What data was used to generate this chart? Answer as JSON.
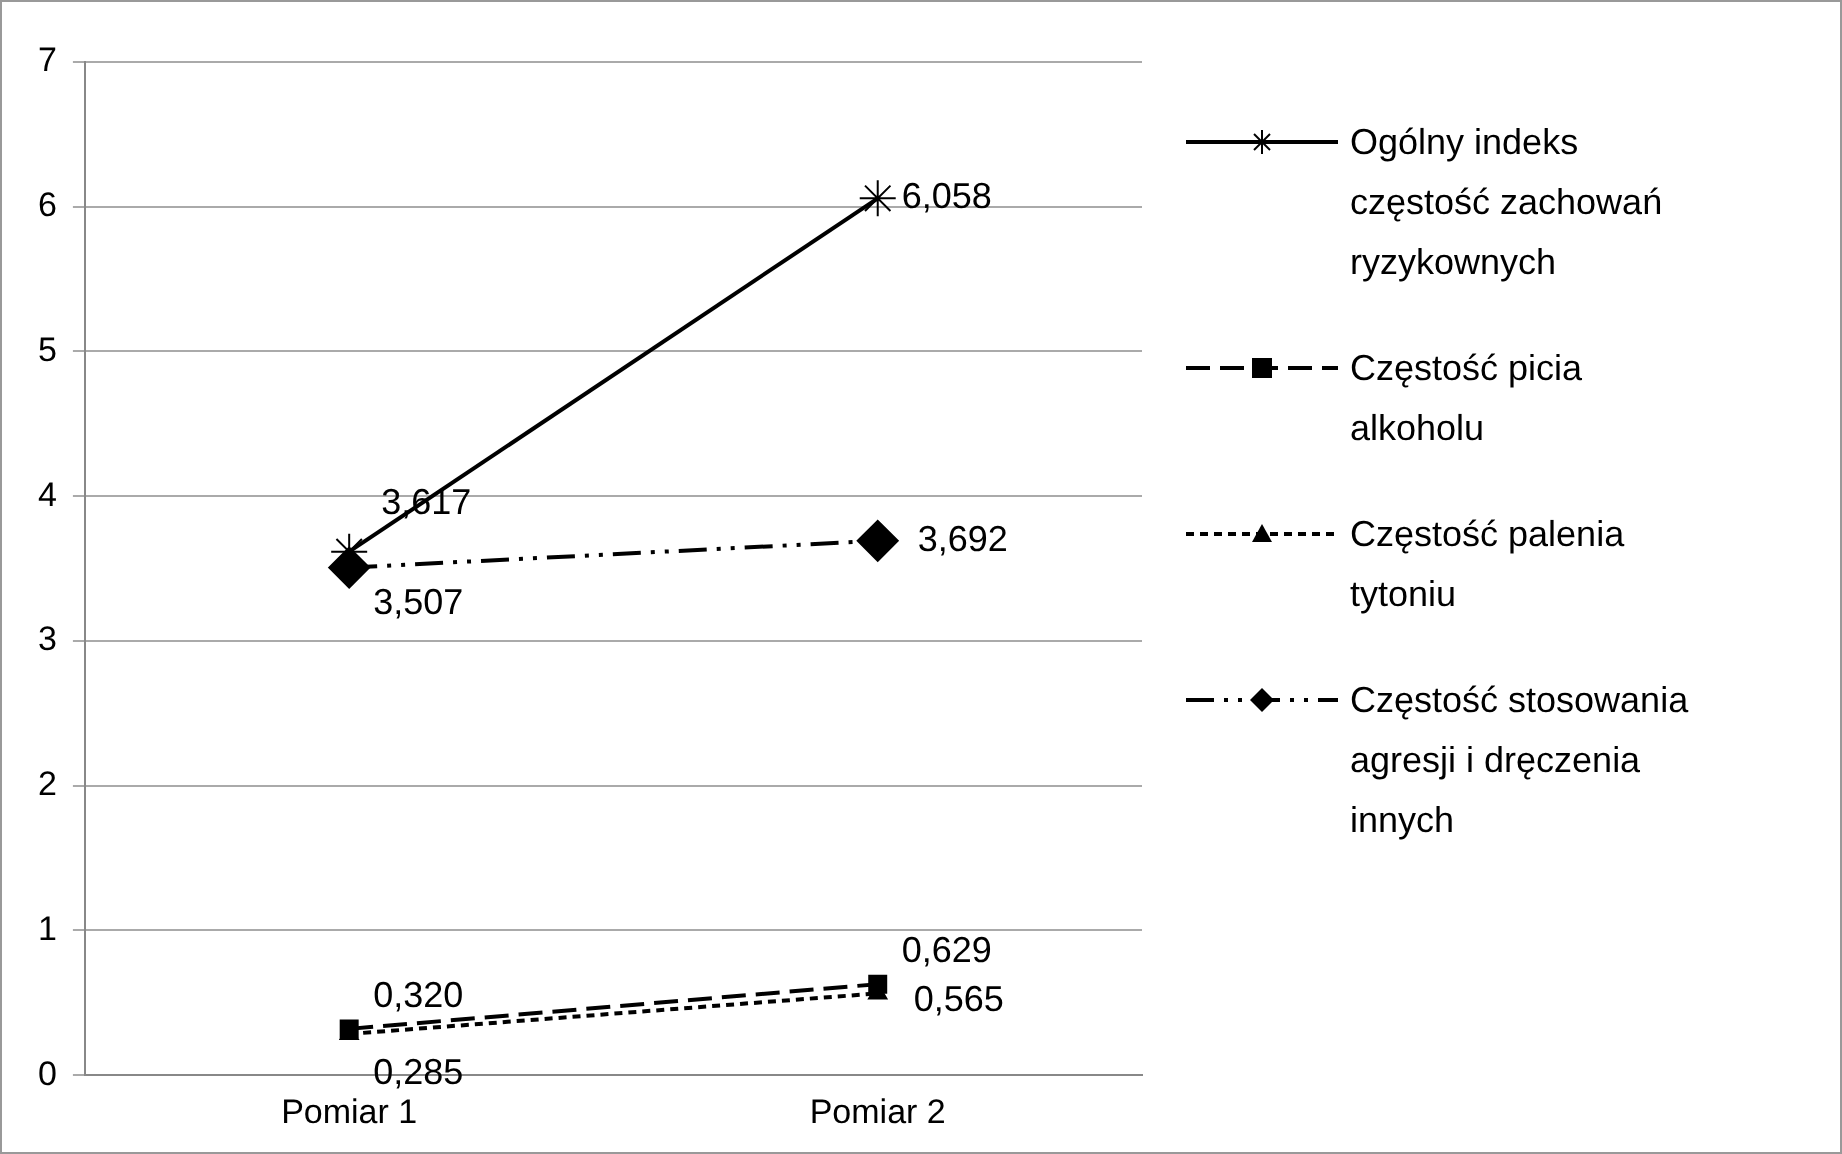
{
  "chart_data": {
    "type": "line",
    "categories": [
      "Pomiar 1",
      "Pomiar 2"
    ],
    "series": [
      {
        "name": "Ogólny indeks częstość zachowań ryzykownych",
        "color": "#000000",
        "values": [
          3.617,
          6.058
        ],
        "value_labels": [
          "3,617",
          "6,058"
        ],
        "marker": "cross",
        "line_style": "solid"
      },
      {
        "name": "Częstość picia alkoholu",
        "color": "#000000",
        "values": [
          0.32,
          0.629
        ],
        "value_labels": [
          "0,320",
          "0,629"
        ],
        "marker": "square",
        "line_style": "dashed"
      },
      {
        "name": "Częstość palenia tytoniu",
        "color": "#000000",
        "values": [
          0.285,
          0.565
        ],
        "value_labels": [
          "0,285",
          "0,565"
        ],
        "marker": "triangle",
        "line_style": "dotted"
      },
      {
        "name": "Częstość stosowania agresji i dręczenia innych",
        "color": "#000000",
        "values": [
          3.507,
          3.692
        ],
        "value_labels": [
          "3,507",
          "3,692"
        ],
        "marker": "diamond",
        "line_style": "dashed"
      }
    ],
    "ylim": [
      0,
      7
    ],
    "yticks": [
      0,
      1,
      2,
      3,
      4,
      5,
      6,
      7
    ],
    "grid": "y",
    "legend": "right"
  }
}
